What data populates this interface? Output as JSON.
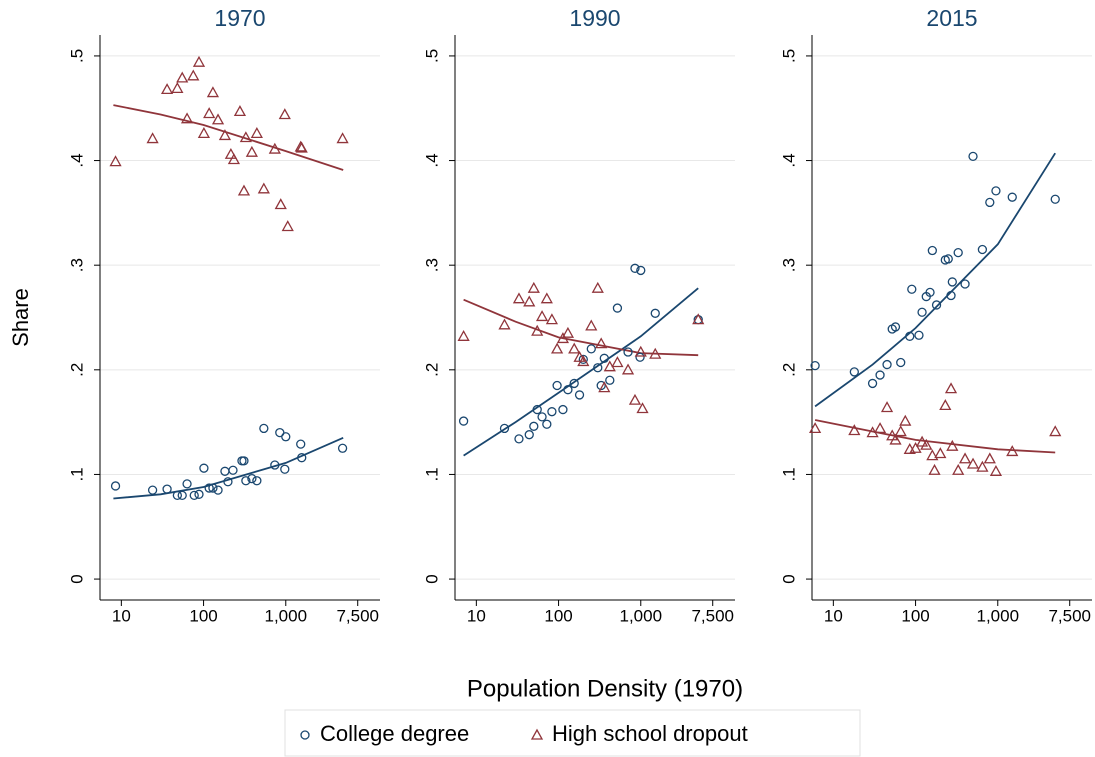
{
  "chart_data": [
    {
      "type": "scatter",
      "title": "1970",
      "ylabel": "Share",
      "log_x": true,
      "grid": true,
      "xlim": [
        5.5,
        14000
      ],
      "ylim": [
        -0.02,
        0.52
      ],
      "xticks": [
        10,
        100,
        {
          "value": 1000,
          "label": "1,000"
        },
        {
          "value": 7500,
          "label": "7,500"
        }
      ],
      "yticks": [
        0,
        {
          "value": 0.1,
          "label": ".1"
        },
        {
          "value": 0.2,
          "label": ".2"
        },
        {
          "value": 0.3,
          "label": ".3"
        },
        {
          "value": 0.4,
          "label": ".4"
        },
        {
          "value": 0.5,
          "label": ".5"
        }
      ],
      "series": [
        {
          "name": "College degree",
          "color": "#1a476f",
          "marker": "circle",
          "x": [
            8.5,
            24,
            36,
            48,
            55,
            63,
            77,
            88,
            101,
            117,
            130,
            150,
            182,
            198,
            228,
            293,
            310,
            327,
            387,
            445,
            541,
            736,
            846,
            1000,
            973,
            1520,
            1563,
            4910
          ],
          "values": [
            0.089,
            0.085,
            0.086,
            0.08,
            0.08,
            0.091,
            0.08,
            0.081,
            0.106,
            0.087,
            0.087,
            0.085,
            0.103,
            0.093,
            0.104,
            0.113,
            0.113,
            0.094,
            0.096,
            0.094,
            0.144,
            0.109,
            0.14,
            0.136,
            0.105,
            0.129,
            0.116,
            0.125
          ]
        },
        {
          "name": "High school dropout",
          "color": "#90353b",
          "marker": "triangle",
          "x": [
            8.5,
            24,
            36,
            48,
            55,
            75,
            88,
            63,
            101,
            117,
            130,
            150,
            182,
            215,
            234,
            277,
            310,
            327,
            387,
            445,
            541,
            736,
            973,
            1057,
            869,
            1520,
            1563,
            4910
          ],
          "values": [
            0.399,
            0.421,
            0.468,
            0.469,
            0.479,
            0.481,
            0.494,
            0.44,
            0.426,
            0.445,
            0.465,
            0.439,
            0.424,
            0.406,
            0.401,
            0.447,
            0.371,
            0.422,
            0.408,
            0.426,
            0.373,
            0.411,
            0.444,
            0.337,
            0.358,
            0.413,
            0.412,
            0.421
          ]
        }
      ],
      "fits": [
        {
          "color": "#1a476f",
          "x": [
            8,
            30,
            100,
            1000,
            5000
          ],
          "values": [
            0.077,
            0.081,
            0.088,
            0.111,
            0.135
          ]
        },
        {
          "color": "#90353b",
          "x": [
            8,
            30,
            100,
            1000,
            5000
          ],
          "values": [
            0.453,
            0.444,
            0.434,
            0.409,
            0.391
          ]
        }
      ]
    },
    {
      "type": "scatter",
      "title": "1990",
      "xlabel": "Population Density (1970)",
      "log_x": true,
      "grid": true,
      "xlim": [
        5.5,
        14000
      ],
      "ylim": [
        -0.02,
        0.52
      ],
      "xticks": [
        10,
        100,
        {
          "value": 1000,
          "label": "1,000"
        },
        {
          "value": 7500,
          "label": "7,500"
        }
      ],
      "yticks": [
        0,
        {
          "value": 0.1,
          "label": ".1"
        },
        {
          "value": 0.2,
          "label": ".2"
        },
        {
          "value": 0.3,
          "label": ".3"
        },
        {
          "value": 0.4,
          "label": ".4"
        },
        {
          "value": 0.5,
          "label": ".5"
        }
      ],
      "series": [
        {
          "name": "College degree",
          "color": "#1a476f",
          "marker": "circle",
          "x": [
            7,
            22,
            33,
            44,
            50,
            55,
            63,
            72,
            83,
            96,
            113,
            130,
            155,
            180,
            200,
            250,
            300,
            330,
            360,
            420,
            520,
            700,
            850,
            1000,
            980,
            1500,
            5000
          ],
          "values": [
            0.151,
            0.144,
            0.134,
            0.138,
            0.146,
            0.162,
            0.155,
            0.148,
            0.16,
            0.185,
            0.162,
            0.181,
            0.187,
            0.176,
            0.21,
            0.22,
            0.202,
            0.185,
            0.211,
            0.19,
            0.259,
            0.217,
            0.297,
            0.295,
            0.212,
            0.254,
            0.248
          ]
        },
        {
          "name": "High school dropout",
          "color": "#90353b",
          "marker": "triangle",
          "x": [
            7,
            22,
            33,
            44,
            50,
            55,
            63,
            72,
            83,
            96,
            113,
            130,
            155,
            180,
            200,
            250,
            300,
            330,
            360,
            420,
            520,
            700,
            850,
            1000,
            1050,
            1500,
            5000
          ],
          "values": [
            0.232,
            0.243,
            0.268,
            0.265,
            0.278,
            0.237,
            0.251,
            0.268,
            0.248,
            0.22,
            0.23,
            0.235,
            0.22,
            0.212,
            0.208,
            0.242,
            0.278,
            0.225,
            0.183,
            0.203,
            0.207,
            0.2,
            0.171,
            0.217,
            0.163,
            0.215,
            0.248
          ]
        }
      ],
      "fits": [
        {
          "color": "#1a476f",
          "x": [
            7,
            30,
            100,
            1000,
            5000
          ],
          "values": [
            0.118,
            0.15,
            0.178,
            0.232,
            0.278
          ]
        },
        {
          "color": "#90353b",
          "x": [
            7,
            30,
            100,
            1000,
            5000
          ],
          "values": [
            0.267,
            0.246,
            0.231,
            0.216,
            0.214
          ]
        }
      ]
    },
    {
      "type": "scatter",
      "title": "2015",
      "log_x": true,
      "grid": true,
      "xlim": [
        5.5,
        14000
      ],
      "ylim": [
        -0.02,
        0.52
      ],
      "xticks": [
        10,
        100,
        {
          "value": 1000,
          "label": "1,000"
        },
        {
          "value": 7500,
          "label": "7,500"
        }
      ],
      "yticks": [
        0,
        {
          "value": 0.1,
          "label": ".1"
        },
        {
          "value": 0.2,
          "label": ".2"
        },
        {
          "value": 0.3,
          "label": ".3"
        },
        {
          "value": 0.4,
          "label": ".4"
        },
        {
          "value": 0.5,
          "label": ".5"
        }
      ],
      "series": [
        {
          "name": "College degree",
          "color": "#1a476f",
          "marker": "circle",
          "x": [
            6,
            18,
            30,
            37,
            45,
            52,
            57,
            66,
            85,
            90,
            110,
            120,
            135,
            150,
            160,
            180,
            230,
            250,
            270,
            280,
            330,
            400,
            500,
            650,
            800,
            950,
            1500,
            5000
          ],
          "values": [
            0.204,
            0.198,
            0.187,
            0.195,
            0.205,
            0.239,
            0.241,
            0.207,
            0.232,
            0.277,
            0.233,
            0.255,
            0.27,
            0.274,
            0.314,
            0.262,
            0.305,
            0.306,
            0.271,
            0.284,
            0.312,
            0.282,
            0.404,
            0.315,
            0.36,
            0.371,
            0.365,
            0.363
          ]
        },
        {
          "name": "High school dropout",
          "color": "#90353b",
          "marker": "triangle",
          "x": [
            6,
            18,
            30,
            37,
            45,
            52,
            57,
            66,
            75,
            85,
            100,
            120,
            135,
            160,
            170,
            200,
            230,
            270,
            280,
            330,
            400,
            500,
            650,
            800,
            950,
            1500,
            5000
          ],
          "values": [
            0.144,
            0.142,
            0.14,
            0.144,
            0.164,
            0.137,
            0.133,
            0.141,
            0.151,
            0.124,
            0.125,
            0.131,
            0.128,
            0.118,
            0.104,
            0.12,
            0.166,
            0.182,
            0.127,
            0.104,
            0.115,
            0.11,
            0.107,
            0.115,
            0.103,
            0.122,
            0.141
          ]
        }
      ],
      "fits": [
        {
          "color": "#1a476f",
          "x": [
            6,
            30,
            100,
            1000,
            5000
          ],
          "values": [
            0.165,
            0.205,
            0.24,
            0.32,
            0.407
          ]
        },
        {
          "color": "#90353b",
          "x": [
            6,
            30,
            100,
            1000,
            5000
          ],
          "values": [
            0.152,
            0.141,
            0.133,
            0.124,
            0.121
          ]
        }
      ]
    }
  ]
}
